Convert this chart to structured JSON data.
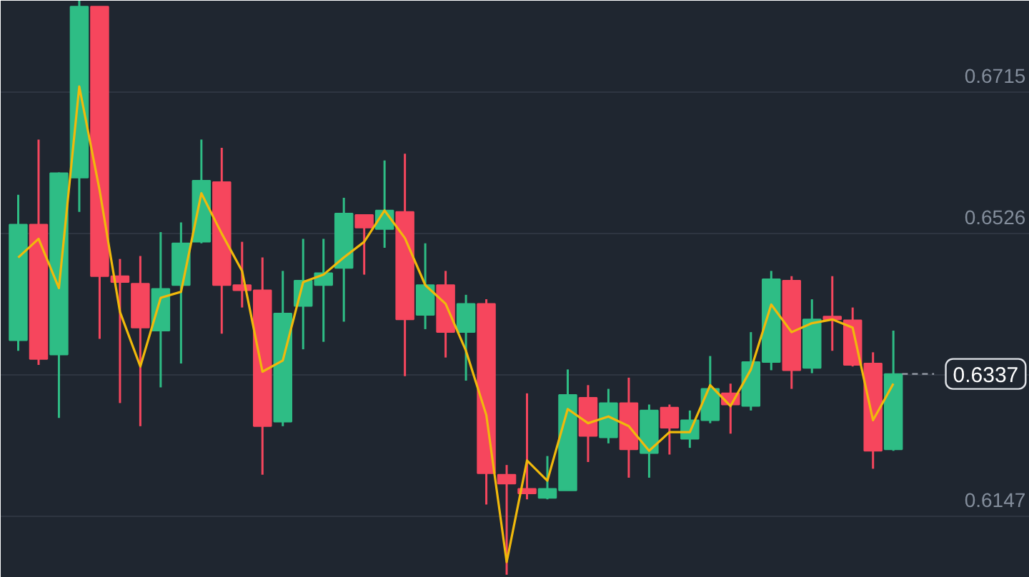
{
  "chart_data": {
    "type": "candlestick",
    "categories": [
      null,
      null,
      null,
      null,
      null,
      null,
      null,
      null,
      null,
      null,
      null,
      null,
      null,
      null,
      null,
      null,
      null,
      null,
      null,
      null,
      null,
      null,
      null,
      null,
      null,
      null,
      null,
      null,
      null,
      null,
      null,
      null,
      null,
      null,
      null,
      null,
      null,
      null,
      null,
      null,
      null,
      null,
      null,
      null
    ],
    "ohlc": [
      [
        0.6382,
        0.6577,
        0.6368,
        0.6537
      ],
      [
        0.6537,
        0.6651,
        0.6349,
        0.6357
      ],
      [
        0.6363,
        0.6607,
        0.6278,
        0.6606
      ],
      [
        0.66,
        0.6837,
        0.6554,
        0.6829
      ],
      [
        0.6829,
        0.6829,
        0.6384,
        0.6468
      ],
      [
        0.6468,
        0.6491,
        0.6298,
        0.646
      ],
      [
        0.6458,
        0.6495,
        0.6267,
        0.6399
      ],
      [
        0.6395,
        0.6527,
        0.6319,
        0.6451
      ],
      [
        0.6456,
        0.654,
        0.6351,
        0.6512
      ],
      [
        0.6514,
        0.6651,
        0.6512,
        0.6596
      ],
      [
        0.6594,
        0.664,
        0.6391,
        0.6456
      ],
      [
        0.6456,
        0.6514,
        0.6426,
        0.6449
      ],
      [
        0.6449,
        0.6493,
        0.6202,
        0.6267
      ],
      [
        0.6273,
        0.6475,
        0.6267,
        0.6418
      ],
      [
        0.6428,
        0.6518,
        0.637,
        0.6462
      ],
      [
        0.6456,
        0.6518,
        0.638,
        0.6472
      ],
      [
        0.6479,
        0.6573,
        0.6407,
        0.6552
      ],
      [
        0.655,
        0.655,
        0.647,
        0.6533
      ],
      [
        0.6531,
        0.6623,
        0.6506,
        0.6556
      ],
      [
        0.6554,
        0.6632,
        0.6334,
        0.641
      ],
      [
        0.6416,
        0.6512,
        0.6397,
        0.6456
      ],
      [
        0.6456,
        0.6475,
        0.6359,
        0.6393
      ],
      [
        0.6393,
        0.6443,
        0.6328,
        0.6431
      ],
      [
        0.6431,
        0.6437,
        0.6162,
        0.6204
      ],
      [
        0.6202,
        0.6215,
        0.6068,
        0.619
      ],
      [
        0.6183,
        0.6311,
        0.6169,
        0.6177
      ],
      [
        0.6171,
        0.6227,
        0.6169,
        0.6183
      ],
      [
        0.6181,
        0.6343,
        0.6181,
        0.6309
      ],
      [
        0.6305,
        0.6322,
        0.6219,
        0.6254
      ],
      [
        0.6252,
        0.6317,
        0.6244,
        0.6298
      ],
      [
        0.6298,
        0.6332,
        0.6198,
        0.6236
      ],
      [
        0.6231,
        0.6296,
        0.6198,
        0.6288
      ],
      [
        0.6292,
        0.6296,
        0.6229,
        0.6265
      ],
      [
        0.625,
        0.6288,
        0.6238,
        0.6275
      ],
      [
        0.6275,
        0.6361,
        0.6271,
        0.6317
      ],
      [
        0.6311,
        0.6324,
        0.6257,
        0.6296
      ],
      [
        0.6294,
        0.6393,
        0.6288,
        0.6353
      ],
      [
        0.6353,
        0.6475,
        0.6342,
        0.6464
      ],
      [
        0.6462,
        0.6468,
        0.6317,
        0.6342
      ],
      [
        0.6345,
        0.6437,
        0.6338,
        0.641
      ],
      [
        0.6414,
        0.6468,
        0.6368,
        0.641
      ],
      [
        0.6409,
        0.6426,
        0.6347,
        0.6349
      ],
      [
        0.6351,
        0.6366,
        0.621,
        0.6234
      ],
      [
        0.6236,
        0.6395,
        0.6234,
        0.6337
      ]
    ],
    "colors": [
      "#2ebd85",
      "#f6465d",
      "#2ebd85",
      "#2ebd85",
      "#f6465d",
      "#f6465d",
      "#f6465d",
      "#2ebd85",
      "#2ebd85",
      "#2ebd85",
      "#f6465d",
      "#f6465d",
      "#f6465d",
      "#2ebd85",
      "#2ebd85",
      "#2ebd85",
      "#2ebd85",
      "#f6465d",
      "#2ebd85",
      "#f6465d",
      "#2ebd85",
      "#f6465d",
      "#2ebd85",
      "#f6465d",
      "#f6465d",
      "#f6465d",
      "#2ebd85",
      "#2ebd85",
      "#f6465d",
      "#2ebd85",
      "#f6465d",
      "#2ebd85",
      "#f6465d",
      "#2ebd85",
      "#2ebd85",
      "#f6465d",
      "#2ebd85",
      "#2ebd85",
      "#f6465d",
      "#2ebd85",
      "#f6465d",
      "#f6465d",
      "#f6465d",
      "#2ebd85"
    ],
    "series": [
      {
        "type": "line",
        "color": "#f0b90b",
        "values": [
          0.6493,
          0.6518,
          0.6452,
          0.6722,
          0.6583,
          0.642,
          0.6347,
          0.6439,
          0.6447,
          0.6579,
          0.6525,
          0.6475,
          0.634,
          0.6355,
          0.646,
          0.647,
          0.6493,
          0.6514,
          0.6556,
          0.6519,
          0.6456,
          0.6431,
          0.6368,
          0.6282,
          0.6085,
          0.6221,
          0.6194,
          0.629,
          0.6271,
          0.628,
          0.6267,
          0.6234,
          0.6259,
          0.6259,
          0.6322,
          0.6294,
          0.6343,
          0.643,
          0.6393,
          0.6405,
          0.641,
          0.6399,
          0.6275,
          0.6324
        ]
      }
    ],
    "ylim": [
      0.6064,
      0.6837
    ],
    "yticks": [
      0.6147,
      {
        "value": 0.6336,
        "label": null
      },
      0.6526,
      0.6715
    ],
    "tick_labels": "y",
    "grid": true,
    "ref_lines": [
      {
        "axis": "y",
        "value": 0.6337,
        "label": "0.6337",
        "line_style": "dashed",
        "color": "#9aa0aa"
      }
    ]
  }
}
